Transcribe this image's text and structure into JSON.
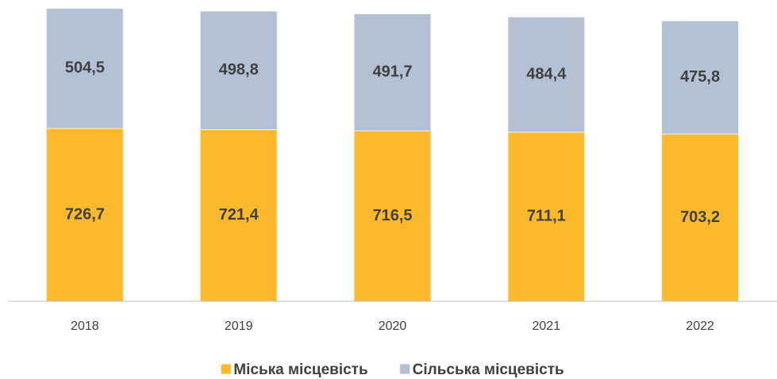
{
  "chart_data": {
    "type": "stacked_bar",
    "categories": [
      "2018",
      "2019",
      "2020",
      "2021",
      "2022"
    ],
    "series": [
      {
        "name": "Міська місцевість",
        "color": "#fdb92c",
        "values": [
          726.7,
          721.4,
          716.5,
          711.1,
          703.2
        ],
        "value_labels": [
          "726,7",
          "721,4",
          "716,5",
          "711,1",
          "703,2"
        ]
      },
      {
        "name": "Сільська місцевість",
        "color": "#b4c0d3",
        "values": [
          504.5,
          498.8,
          491.7,
          484.4,
          475.8
        ],
        "value_labels": [
          "504,5",
          "498,8",
          "491,7",
          "484,4",
          "475,8"
        ]
      }
    ],
    "ylim": [
      0,
      1240
    ],
    "legend": "bottom"
  }
}
